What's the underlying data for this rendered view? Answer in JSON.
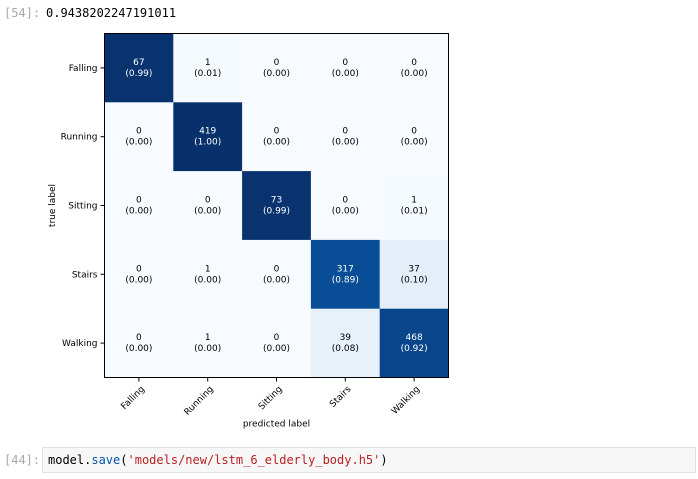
{
  "output_cell": {
    "prompt": "[54]:",
    "value": "0.9438202247191011"
  },
  "input_cell": {
    "prompt": "[44]:",
    "code_object": "model.",
    "code_method": "save",
    "code_open": "(",
    "code_string": "'models/new/lstm_6_elderly_body.h5'",
    "code_close": ")"
  },
  "chart_data": {
    "type": "heatmap",
    "colormap": "Blues",
    "xlabel": "predicted label",
    "ylabel": "true label",
    "x_categories": [
      "Falling",
      "Running",
      "Sitting",
      "Stairs",
      "Walking"
    ],
    "y_categories": [
      "Falling",
      "Running",
      "Sitting",
      "Stairs",
      "Walking"
    ],
    "counts": [
      [
        67,
        1,
        0,
        0,
        0
      ],
      [
        0,
        419,
        0,
        0,
        0
      ],
      [
        0,
        0,
        73,
        0,
        1
      ],
      [
        0,
        1,
        0,
        317,
        37
      ],
      [
        0,
        1,
        0,
        39,
        468
      ]
    ],
    "normalized": [
      [
        "0.99",
        "0.01",
        "0.00",
        "0.00",
        "0.00"
      ],
      [
        "0.00",
        "1.00",
        "0.00",
        "0.00",
        "0.00"
      ],
      [
        "0.00",
        "0.00",
        "0.99",
        "0.00",
        "0.01"
      ],
      [
        "0.00",
        "0.00",
        "0.00",
        "0.89",
        "0.10"
      ],
      [
        "0.00",
        "0.00",
        "0.00",
        "0.08",
        "0.92"
      ]
    ]
  }
}
